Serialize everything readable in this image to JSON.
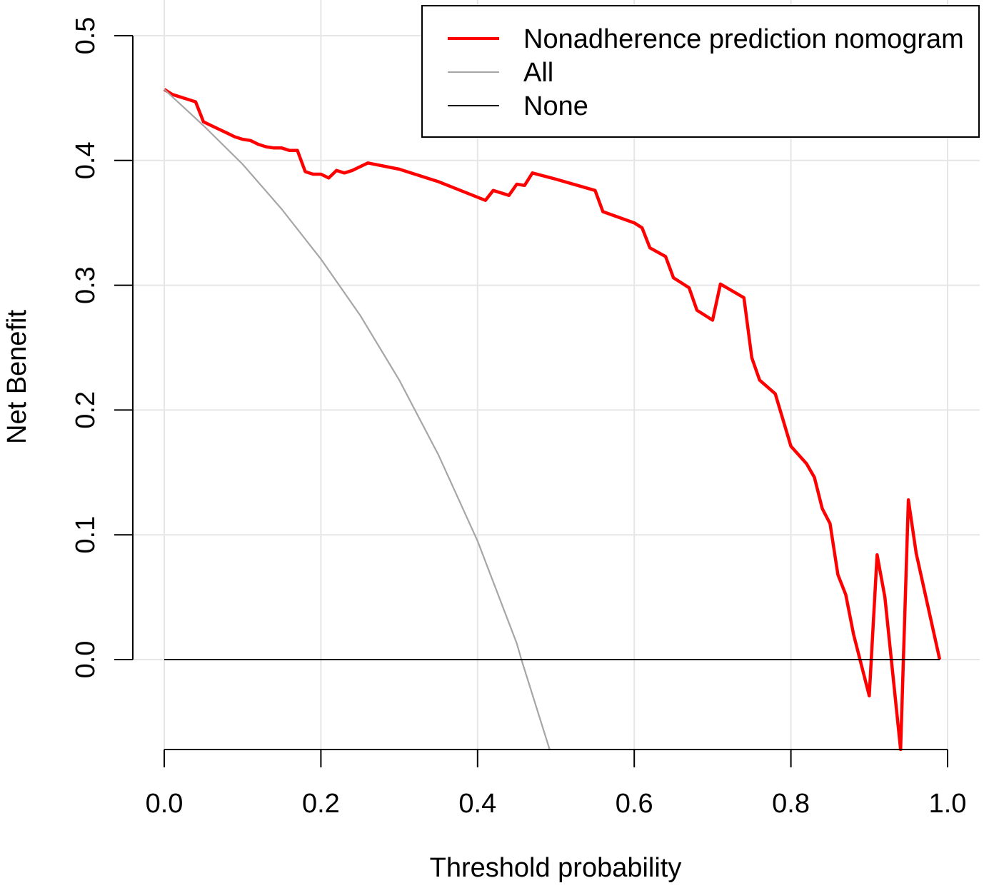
{
  "chart_data": {
    "type": "line",
    "title": "",
    "xlabel": "Threshold probability",
    "ylabel": "Net Benefit",
    "xlim": [
      0.0,
      1.0
    ],
    "ylim": [
      -0.072,
      0.5
    ],
    "xticks": [
      "0.0",
      "0.2",
      "0.4",
      "0.6",
      "0.8",
      "1.0"
    ],
    "yticks": [
      "0.0",
      "0.1",
      "0.2",
      "0.3",
      "0.4",
      "0.5"
    ],
    "grid": true,
    "legend_position": "top-right",
    "series": [
      {
        "name": "Nonadherence prediction nomogram",
        "color": "#ff0000",
        "x": [
          0.0,
          0.01,
          0.02,
          0.03,
          0.04,
          0.05,
          0.06,
          0.07,
          0.08,
          0.09,
          0.1,
          0.11,
          0.12,
          0.13,
          0.14,
          0.15,
          0.16,
          0.17,
          0.18,
          0.19,
          0.2,
          0.21,
          0.22,
          0.23,
          0.24,
          0.25,
          0.26,
          0.3,
          0.35,
          0.41,
          0.42,
          0.44,
          0.45,
          0.46,
          0.47,
          0.5,
          0.55,
          0.56,
          0.6,
          0.61,
          0.62,
          0.64,
          0.65,
          0.67,
          0.68,
          0.7,
          0.71,
          0.74,
          0.75,
          0.76,
          0.78,
          0.8,
          0.82,
          0.83,
          0.84,
          0.85,
          0.86,
          0.87,
          0.88,
          0.9,
          0.91,
          0.92,
          0.94,
          0.95,
          0.96,
          0.99
        ],
        "y": [
          0.457,
          0.453,
          0.451,
          0.449,
          0.447,
          0.431,
          0.428,
          0.425,
          0.422,
          0.419,
          0.417,
          0.416,
          0.413,
          0.411,
          0.41,
          0.41,
          0.408,
          0.408,
          0.391,
          0.389,
          0.389,
          0.386,
          0.392,
          0.39,
          0.392,
          0.395,
          0.398,
          0.393,
          0.383,
          0.368,
          0.376,
          0.372,
          0.381,
          0.38,
          0.39,
          0.385,
          0.376,
          0.359,
          0.35,
          0.346,
          0.33,
          0.323,
          0.306,
          0.298,
          0.28,
          0.272,
          0.301,
          0.29,
          0.242,
          0.224,
          0.213,
          0.171,
          0.157,
          0.146,
          0.121,
          0.109,
          0.068,
          0.052,
          0.02,
          -0.029,
          0.084,
          0.05,
          -0.072,
          0.128,
          0.085,
          0.0
        ]
      },
      {
        "name": "All",
        "color": "#a6a6a6",
        "x": [
          0.0,
          0.05,
          0.1,
          0.15,
          0.2,
          0.25,
          0.3,
          0.35,
          0.4,
          0.45,
          0.456,
          0.492
        ],
        "y": [
          0.457,
          0.428,
          0.397,
          0.361,
          0.321,
          0.276,
          0.224,
          0.164,
          0.095,
          0.013,
          0.0,
          -0.072
        ]
      },
      {
        "name": "None",
        "color": "#000000",
        "x": [
          0.0,
          0.99
        ],
        "y": [
          0.0,
          0.0
        ]
      }
    ]
  }
}
